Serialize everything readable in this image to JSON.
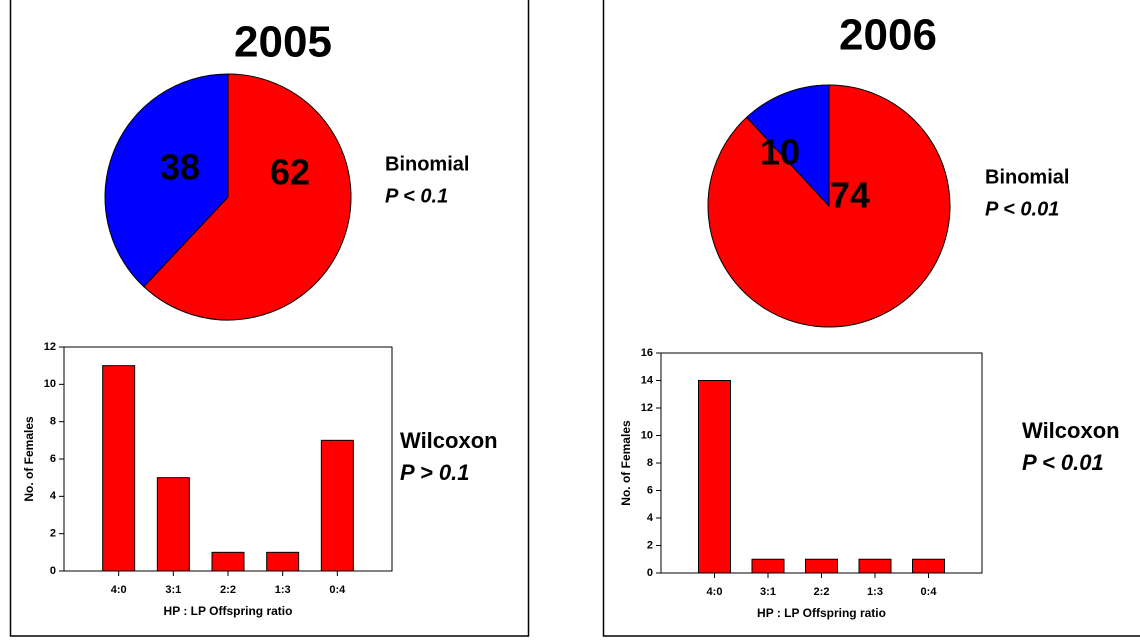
{
  "chart_data": [
    {
      "type": "pie",
      "title": "2005",
      "values": [
        62,
        38
      ],
      "colors": [
        "#ff0000",
        "#0000ff"
      ],
      "annotations": [
        "Binomial",
        "P < 0.1"
      ]
    },
    {
      "type": "bar",
      "categories": [
        "4:0",
        "3:1",
        "2:2",
        "1:3",
        "0:4"
      ],
      "values": [
        11,
        5,
        1,
        1,
        7
      ],
      "color": "#ff0000",
      "ylim": [
        0,
        12
      ],
      "yticks": [
        0,
        2,
        4,
        6,
        8,
        10,
        12
      ],
      "xlabel": "HP : LP Offspring ratio",
      "ylabel": "No. of Females",
      "annotations": [
        "Wilcoxon",
        "P > 0.1"
      ]
    },
    {
      "type": "pie",
      "title": "2006",
      "values": [
        74,
        10
      ],
      "colors": [
        "#ff0000",
        "#0000ff"
      ],
      "annotations": [
        "Binomial",
        "P < 0.01"
      ]
    },
    {
      "type": "bar",
      "categories": [
        "4:0",
        "3:1",
        "2:2",
        "1:3",
        "0:4"
      ],
      "values": [
        14,
        1,
        1,
        1,
        1
      ],
      "color": "#ff0000",
      "ylim": [
        0,
        16
      ],
      "yticks": [
        0,
        2,
        4,
        6,
        8,
        10,
        12,
        14,
        16
      ],
      "xlabel": "HP : LP Offspring ratio",
      "ylabel": "No. of Females",
      "annotations": [
        "Wilcoxon",
        "P < 0.01"
      ]
    }
  ]
}
